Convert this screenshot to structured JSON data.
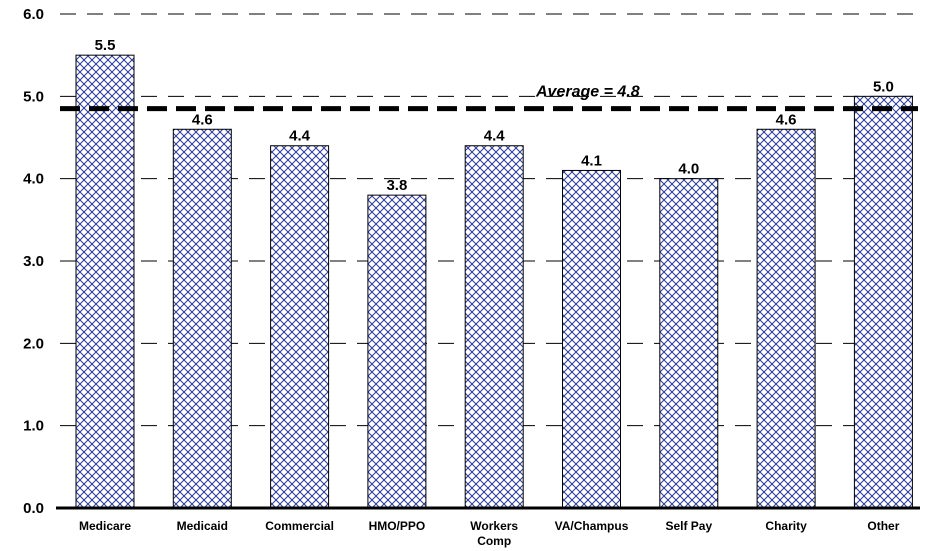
{
  "chart_data": {
    "type": "bar",
    "categories": [
      "Medicare",
      "Medicaid",
      "Commercial",
      "HMO/PPO",
      "Workers Comp",
      "VA/Champus",
      "Self Pay",
      "Charity",
      "Other"
    ],
    "values": [
      5.5,
      4.6,
      4.4,
      3.8,
      4.4,
      4.1,
      4.0,
      4.6,
      5.0
    ],
    "data_labels": [
      "5.5",
      "4.6",
      "4.4",
      "3.8",
      "4.4",
      "4.1",
      "4.0",
      "4.6",
      "5.0"
    ],
    "y_ticks": [
      "0.0",
      "1.0",
      "2.0",
      "3.0",
      "4.0",
      "5.0",
      "6.0"
    ],
    "ylim": [
      0,
      6
    ],
    "grid": "horizontal dashed",
    "average": {
      "value": 4.85,
      "label": "Average = 4.8"
    },
    "bar_fill": "#1f2a8c",
    "bar_pattern": "crosshatch",
    "title": "",
    "xlabel": "",
    "ylabel": ""
  }
}
